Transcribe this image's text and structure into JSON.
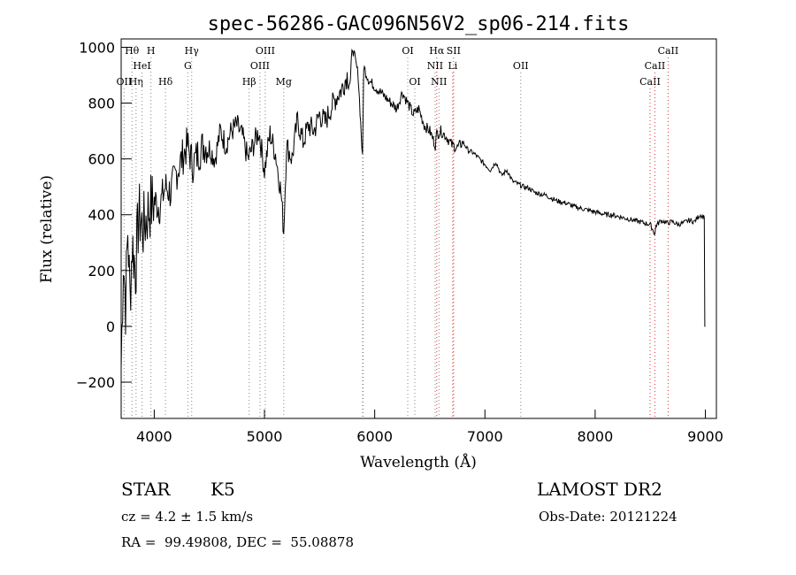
{
  "chart_data": {
    "type": "line",
    "title": "spec-56286-GAC096N56V2_sp06-214.fits",
    "xlabel": "Wavelength (Å)",
    "ylabel": "Flux (relative)",
    "xlim": [
      3700,
      9100
    ],
    "ylim": [
      -330,
      1030
    ],
    "xticks": [
      4000,
      5000,
      6000,
      7000,
      8000,
      9000
    ],
    "yticks": [
      -200,
      0,
      200,
      400,
      600,
      800,
      1000
    ],
    "series": [
      {
        "x": [
          3700,
          3720,
          3740,
          3760,
          3780,
          3800,
          3830,
          3860,
          3900,
          3950,
          4000,
          4050,
          4100,
          4150,
          4200,
          4250,
          4300,
          4350,
          4400,
          4450,
          4500,
          4550,
          4600,
          4650,
          4700,
          4750,
          4800,
          4850,
          4900,
          4950,
          5000,
          5050,
          5100,
          5150,
          5175,
          5200,
          5250,
          5300,
          5350,
          5400,
          5450,
          5500,
          5550,
          5600,
          5650,
          5700,
          5750,
          5780,
          5800,
          5850,
          5890,
          5900,
          5950,
          6000,
          6050,
          6100,
          6150,
          6200,
          6250,
          6300,
          6350,
          6400,
          6450,
          6500,
          6550,
          6563,
          6600,
          6650,
          6700,
          6750,
          6800,
          6850,
          6900,
          6950,
          7000,
          7050,
          7100,
          7150,
          7200,
          7250,
          7300,
          7350,
          7400,
          7450,
          7500,
          7550,
          7600,
          7650,
          7700,
          7750,
          7800,
          7850,
          7900,
          7950,
          8000,
          8050,
          8100,
          8150,
          8200,
          8250,
          8300,
          8350,
          8400,
          8450,
          8500,
          8542,
          8550,
          8600,
          8650,
          8700,
          8750,
          8800,
          8850,
          8900,
          8950,
          8990,
          8995,
          9000
        ],
        "y": [
          -150,
          250,
          80,
          350,
          100,
          300,
          200,
          400,
          350,
          420,
          450,
          430,
          500,
          480,
          550,
          600,
          650,
          580,
          620,
          650,
          640,
          600,
          700,
          650,
          700,
          720,
          680,
          600,
          650,
          700,
          560,
          690,
          620,
          480,
          340,
          650,
          600,
          740,
          660,
          720,
          700,
          760,
          730,
          780,
          820,
          850,
          900,
          870,
          1000,
          900,
          600,
          930,
          880,
          860,
          840,
          820,
          800,
          780,
          840,
          800,
          760,
          780,
          720,
          700,
          650,
          690,
          700,
          680,
          650,
          640,
          660,
          630,
          620,
          600,
          580,
          560,
          590,
          540,
          560,
          520,
          510,
          500,
          495,
          480,
          475,
          470,
          460,
          450,
          445,
          440,
          430,
          425,
          420,
          415,
          410,
          405,
          400,
          400,
          395,
          390,
          385,
          380,
          375,
          370,
          365,
          330,
          360,
          380,
          370,
          375,
          365,
          370,
          380,
          375,
          400,
          390,
          0,
          0
        ]
      }
    ],
    "spectral_lines": [
      {
        "label": "OII",
        "x": 3727,
        "row": 3
      },
      {
        "label": "Hθ",
        "x": 3798,
        "row": 1
      },
      {
        "label": "Hη",
        "x": 3835,
        "row": 3
      },
      {
        "label": "HeI",
        "x": 3889,
        "row": 2
      },
      {
        "label": "H",
        "x": 3970,
        "row": 1
      },
      {
        "label": "Hδ",
        "x": 4102,
        "row": 3
      },
      {
        "label": "Hγ",
        "x": 4340,
        "row": 1
      },
      {
        "label": "G",
        "x": 4305,
        "row": 2
      },
      {
        "label": "Hβ",
        "x": 4861,
        "row": 3
      },
      {
        "label": "OIII",
        "x": 4959,
        "row": 2
      },
      {
        "label": "OIII",
        "x": 5007,
        "row": 1
      },
      {
        "label": "Mg",
        "x": 5175,
        "row": 3
      },
      {
        "label": "OI",
        "x": 6300,
        "row": 1
      },
      {
        "label": "OI",
        "x": 6364,
        "row": 3
      },
      {
        "label": "Hα",
        "x": 6563,
        "row": 1
      },
      {
        "label": "NII",
        "x": 6548,
        "row": 2
      },
      {
        "label": "NII",
        "x": 6583,
        "row": 3
      },
      {
        "label": "SII",
        "x": 6716,
        "row": 1
      },
      {
        "label": "Li",
        "x": 6708,
        "row": 2
      },
      {
        "label": "OII",
        "x": 7325,
        "row": 2
      },
      {
        "label": "CaII",
        "x": 8498,
        "row": 3
      },
      {
        "label": "CaII",
        "x": 8542,
        "row": 2
      },
      {
        "label": "CaII",
        "x": 8662,
        "row": 1
      }
    ],
    "extra_dotted": [
      5890,
      5896
    ]
  },
  "info": {
    "class_label": "STAR",
    "subclass": "K5",
    "survey": "LAMOST DR2",
    "cz": "cz = 4.2 ± 1.5 km/s",
    "obs_date": "Obs-Date: 20121224",
    "coords": "RA =  99.49808, DEC =  55.08878"
  }
}
